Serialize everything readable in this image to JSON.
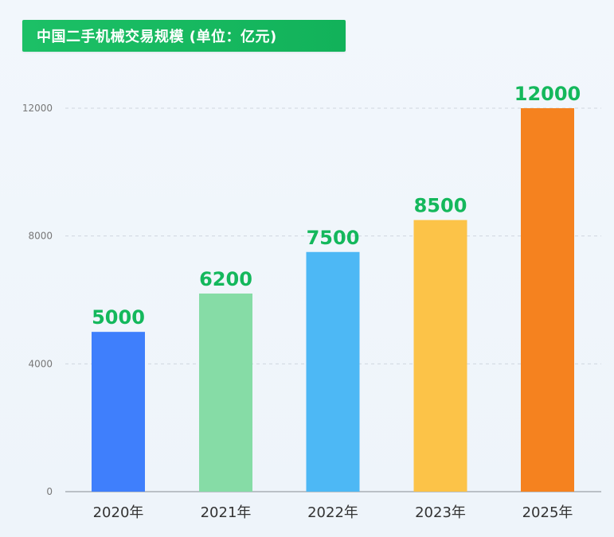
{
  "chart_data": {
    "type": "bar",
    "title": "中国二手机械交易规模 (单位：亿元)",
    "categories": [
      "2020年",
      "2021年",
      "2022年",
      "2023年",
      "2025年"
    ],
    "values": [
      5000,
      6200,
      7500,
      8500,
      12000
    ],
    "data_labels": [
      "5000",
      "6200",
      "7500",
      "8500",
      "12000"
    ],
    "yticks": [
      0,
      4000,
      8000,
      12000
    ],
    "ytick_labels": [
      "0",
      "4000",
      "8000",
      "12000"
    ],
    "ylim": [
      0,
      12000
    ],
    "grid": "dashed-horizontal",
    "legend": "none",
    "bar_colors": [
      "#3f7ffc",
      "#86dca6",
      "#4db8f5",
      "#fcc348",
      "#f5821f"
    ],
    "data_label_color": "#14b85c"
  },
  "colors": {
    "title_background": "#1cc066",
    "title_text": "#ffffff",
    "grid": "#cfd6de",
    "axis": "#9aa0a6"
  }
}
